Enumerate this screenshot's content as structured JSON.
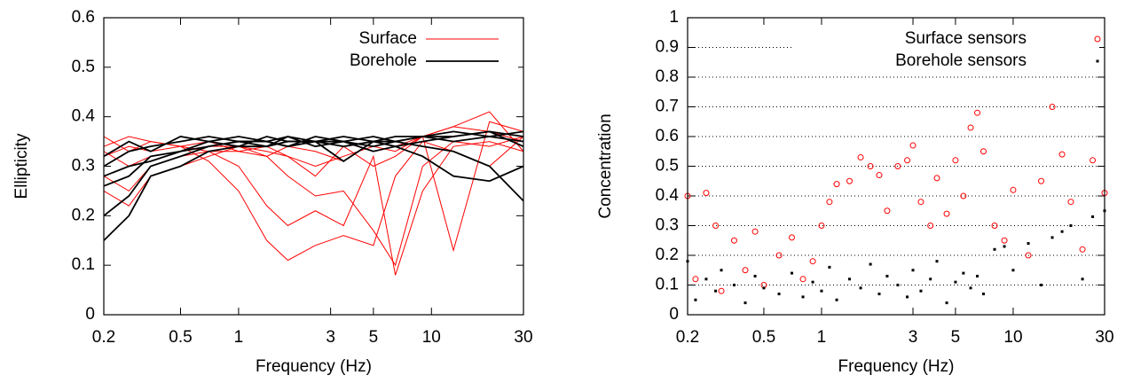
{
  "chart_data": [
    {
      "type": "line",
      "xlabel": "Frequency (Hz)",
      "ylabel": "Ellipticity",
      "log_x": true,
      "grid": false,
      "legend": "top-right",
      "xlim": [
        0.2,
        30
      ],
      "xticks": [
        0.2,
        0.5,
        1,
        3,
        5,
        10,
        30
      ],
      "ylim": [
        0,
        0.6
      ],
      "yticks": [
        0,
        0.1,
        0.2,
        0.3,
        0.4,
        0.5,
        0.6
      ],
      "x": [
        0.2,
        0.27,
        0.35,
        0.5,
        0.7,
        1,
        1.4,
        1.8,
        2.5,
        3.5,
        5,
        6.5,
        9,
        13,
        20,
        30
      ],
      "series": [
        {
          "name": "Surface",
          "color": "#ff0000",
          "lines": [
            [
              0.33,
              0.3,
              0.32,
              0.33,
              0.34,
              0.34,
              0.33,
              0.32,
              0.3,
              0.32,
              0.34,
              0.33,
              0.36,
              0.38,
              0.37,
              0.35
            ],
            [
              0.32,
              0.34,
              0.33,
              0.34,
              0.31,
              0.25,
              0.15,
              0.11,
              0.14,
              0.16,
              0.14,
              0.28,
              0.35,
              0.33,
              0.3,
              0.36
            ],
            [
              0.28,
              0.25,
              0.3,
              0.32,
              0.33,
              0.3,
              0.22,
              0.18,
              0.21,
              0.18,
              0.32,
              0.08,
              0.25,
              0.34,
              0.35,
              0.33
            ],
            [
              0.36,
              0.33,
              0.35,
              0.34,
              0.33,
              0.33,
              0.34,
              0.32,
              0.28,
              0.34,
              0.3,
              0.32,
              0.36,
              0.13,
              0.39,
              0.37
            ],
            [
              0.25,
              0.22,
              0.28,
              0.3,
              0.32,
              0.34,
              0.32,
              0.28,
              0.24,
              0.25,
              0.17,
              0.1,
              0.3,
              0.35,
              0.34,
              0.36
            ],
            [
              0.34,
              0.36,
              0.35,
              0.34,
              0.35,
              0.33,
              0.32,
              0.34,
              0.33,
              0.31,
              0.35,
              0.34,
              0.36,
              0.38,
              0.41,
              0.33
            ]
          ]
        },
        {
          "name": "Borehole",
          "color": "#000000",
          "lines": [
            [
              0.15,
              0.2,
              0.28,
              0.3,
              0.33,
              0.34,
              0.34,
              0.35,
              0.35,
              0.34,
              0.35,
              0.35,
              0.36,
              0.36,
              0.37,
              0.36
            ],
            [
              0.2,
              0.24,
              0.3,
              0.32,
              0.34,
              0.35,
              0.35,
              0.34,
              0.36,
              0.35,
              0.34,
              0.35,
              0.36,
              0.35,
              0.36,
              0.37
            ],
            [
              0.28,
              0.3,
              0.31,
              0.33,
              0.35,
              0.34,
              0.36,
              0.35,
              0.35,
              0.36,
              0.35,
              0.36,
              0.36,
              0.37,
              0.36,
              0.35
            ],
            [
              0.3,
              0.33,
              0.34,
              0.35,
              0.36,
              0.35,
              0.34,
              0.36,
              0.35,
              0.35,
              0.36,
              0.35,
              0.34,
              0.33,
              0.3,
              0.23
            ],
            [
              0.32,
              0.35,
              0.33,
              0.36,
              0.35,
              0.36,
              0.35,
              0.34,
              0.35,
              0.31,
              0.35,
              0.34,
              0.35,
              0.36,
              0.37,
              0.34
            ],
            [
              0.26,
              0.28,
              0.32,
              0.33,
              0.34,
              0.35,
              0.35,
              0.36,
              0.34,
              0.35,
              0.33,
              0.34,
              0.32,
              0.28,
              0.27,
              0.3
            ]
          ]
        }
      ]
    },
    {
      "type": "scatter",
      "xlabel": "Frequency (Hz)",
      "ylabel": "Concentration",
      "log_x": true,
      "grid": true,
      "legend": "top-right",
      "xlim": [
        0.2,
        30
      ],
      "xticks": [
        0.2,
        0.5,
        1,
        3,
        5,
        10,
        30
      ],
      "ylim": [
        0,
        1
      ],
      "yticks": [
        0,
        0.1,
        0.2,
        0.3,
        0.4,
        0.5,
        0.6,
        0.7,
        0.8,
        0.9,
        1
      ],
      "x": [
        0.2,
        0.22,
        0.25,
        0.28,
        0.3,
        0.35,
        0.4,
        0.45,
        0.5,
        0.6,
        0.7,
        0.8,
        0.9,
        1,
        1.1,
        1.2,
        1.4,
        1.6,
        1.8,
        2,
        2.2,
        2.5,
        2.8,
        3,
        3.3,
        3.7,
        4,
        4.5,
        5,
        5.5,
        6,
        6.5,
        7,
        8,
        9,
        10,
        12,
        14,
        16,
        18,
        20,
        23,
        26,
        30
      ],
      "series": [
        {
          "name": "Surface sensors",
          "color": "#ff0000",
          "marker": "circle",
          "values": [
            0.4,
            0.12,
            0.41,
            0.3,
            0.08,
            0.25,
            0.15,
            0.28,
            0.1,
            0.2,
            0.26,
            0.12,
            0.18,
            0.3,
            0.38,
            0.44,
            0.45,
            0.53,
            0.5,
            0.47,
            0.35,
            0.5,
            0.52,
            0.57,
            0.38,
            0.3,
            0.46,
            0.34,
            0.52,
            0.4,
            0.63,
            0.68,
            0.55,
            0.3,
            0.25,
            0.42,
            0.2,
            0.45,
            0.7,
            0.54,
            0.38,
            0.22,
            0.52,
            0.41
          ]
        },
        {
          "name": "Borehole sensors",
          "color": "#000000",
          "marker": "square",
          "values": [
            0.18,
            0.05,
            0.12,
            0.08,
            0.15,
            0.1,
            0.04,
            0.13,
            0.09,
            0.07,
            0.14,
            0.06,
            0.11,
            0.08,
            0.16,
            0.05,
            0.12,
            0.09,
            0.17,
            0.07,
            0.13,
            0.1,
            0.06,
            0.15,
            0.08,
            0.12,
            0.18,
            0.04,
            0.11,
            0.14,
            0.09,
            0.13,
            0.07,
            0.22,
            0.23,
            0.15,
            0.24,
            0.1,
            0.26,
            0.28,
            0.3,
            0.12,
            0.33,
            0.35
          ]
        }
      ]
    }
  ]
}
